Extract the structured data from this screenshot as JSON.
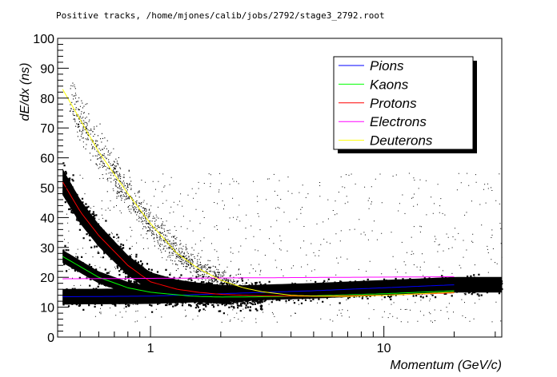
{
  "chart_data": {
    "type": "scatter",
    "title": "Positive tracks, /home/mjones/calib/jobs/2792/stage3_2792.root",
    "xlabel": "Momentum (GeV/c)",
    "ylabel": "dE/dx  (ns)",
    "x_scale": "log",
    "xlim": [
      0.4,
      32
    ],
    "ylim": [
      0,
      100
    ],
    "x_ticks": [
      1,
      10
    ],
    "x_tick_labels": [
      "1",
      "10"
    ],
    "y_ticks": [
      0,
      10,
      20,
      30,
      40,
      50,
      60,
      70,
      80,
      90,
      100
    ],
    "y_tick_labels": [
      "0",
      "10",
      "20",
      "30",
      "40",
      "50",
      "60",
      "70",
      "80",
      "90",
      "100"
    ],
    "grid": false,
    "legend_position": "top-right",
    "series": [
      {
        "name": "Pions",
        "color": "#0000ff",
        "x": [
          0.42,
          1,
          2,
          5,
          10,
          20
        ],
        "y": [
          13.5,
          13.7,
          14.5,
          15.5,
          16.5,
          17.5
        ]
      },
      {
        "name": "Kaons",
        "color": "#00ff00",
        "x": [
          0.42,
          0.6,
          0.8,
          1.0,
          1.5,
          2,
          3,
          5,
          10,
          20
        ],
        "y": [
          27,
          20,
          16.5,
          15,
          13.7,
          13.4,
          13.5,
          13.8,
          14.5,
          15.5
        ]
      },
      {
        "name": "Protons",
        "color": "#ff0000",
        "x": [
          0.42,
          0.5,
          0.6,
          0.8,
          1.0,
          1.3,
          1.6,
          2,
          2.5,
          3,
          5,
          10,
          20
        ],
        "y": [
          52,
          42,
          34,
          24,
          18.5,
          16,
          15,
          14.3,
          14,
          13.8,
          13.7,
          14,
          14.8
        ]
      },
      {
        "name": "Electrons",
        "color": "#ff00ff",
        "x": [
          0.42,
          20
        ],
        "y": [
          19.5,
          20.2
        ]
      },
      {
        "name": "Deuterons",
        "color": "#ffff00",
        "x": [
          0.42,
          0.6,
          0.8,
          1.0,
          1.3,
          1.6,
          2,
          2.5,
          3,
          4,
          5,
          7,
          10,
          20
        ],
        "y": [
          83,
          62,
          48,
          38,
          28,
          23,
          19,
          16.5,
          15.2,
          14,
          13.7,
          13.6,
          14,
          15
        ]
      }
    ]
  }
}
